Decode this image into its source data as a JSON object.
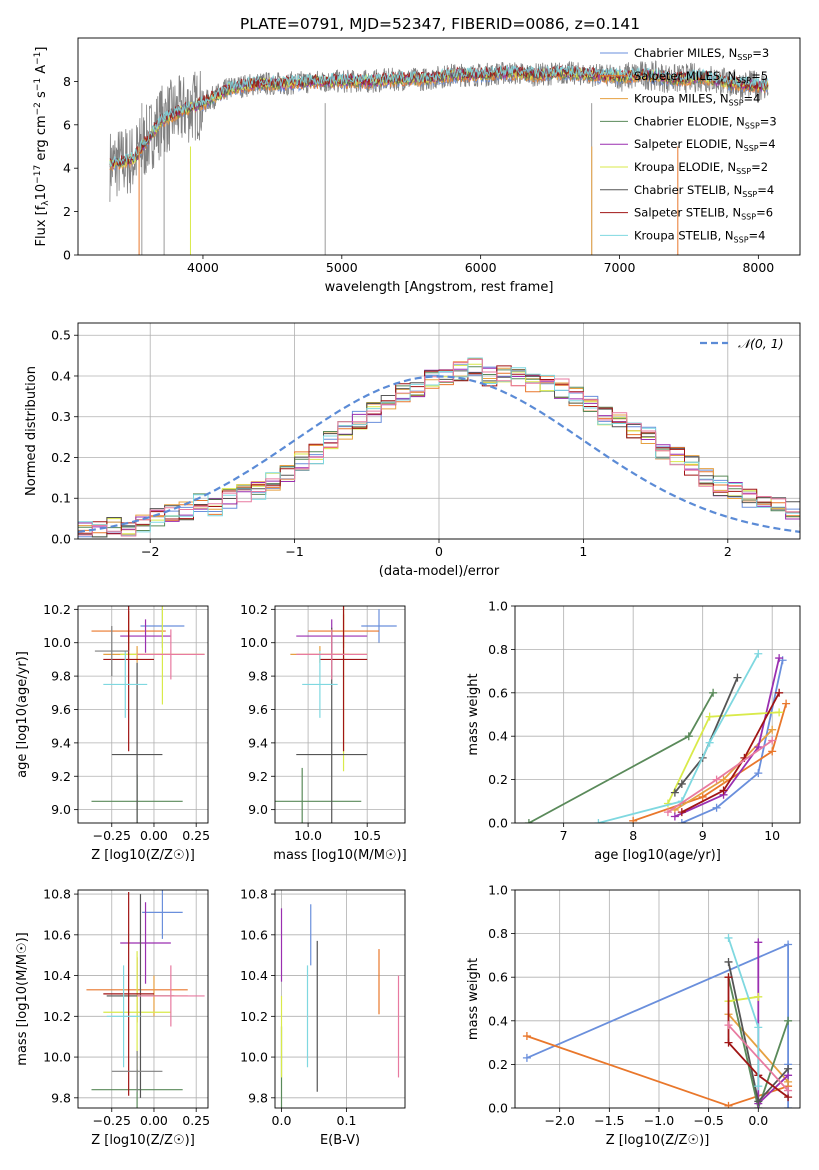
{
  "figure": {
    "title": "PLATE=0791, MJD=52347, FIBERID=0086, z=0.141",
    "colors": {
      "Chabrier MILES": "#6a8fdc",
      "Salpeter MILES": "#e9772b",
      "Kroupa MILES": "#e6a040",
      "Chabrier ELODIE": "#5a8a5a",
      "Salpeter ELODIE": "#9a2fb0",
      "Kroupa ELODIE": "#d9ea4a",
      "Chabrier STELIB": "#555555",
      "Salpeter STELIB": "#a01515",
      "Kroupa STELIB": "#7fd8e0",
      "pink": "#e87aa0",
      "grey": "#808080"
    }
  },
  "chart_data": [
    {
      "id": "spectrum",
      "type": "line",
      "xlabel": "wavelength [Angstrom, rest frame]",
      "ylabel": "Flux [f",
      "ylabel_parts": [
        "Flux [f",
        "λ",
        "10",
        "−17",
        " erg cm",
        "−2",
        " s",
        "−1",
        " A",
        "−1",
        "]"
      ],
      "xlim": [
        3100,
        8300
      ],
      "ylim": [
        0,
        10
      ],
      "xticks": [
        4000,
        5000,
        6000,
        7000,
        8000
      ],
      "yticks": [
        0,
        2,
        4,
        6,
        8
      ],
      "legend": [
        {
          "name": "Chabrier MILES",
          "n": "3"
        },
        {
          "name": "Salpeter MILES",
          "n": "5"
        },
        {
          "name": "Kroupa MILES",
          "n": "4"
        },
        {
          "name": "Chabrier ELODIE",
          "n": "3"
        },
        {
          "name": "Salpeter ELODIE",
          "n": "4"
        },
        {
          "name": "Kroupa ELODIE",
          "n": "2"
        },
        {
          "name": "Chabrier STELIB",
          "n": "4"
        },
        {
          "name": "Salpeter STELIB",
          "n": "6"
        },
        {
          "name": "Kroupa STELIB",
          "n": "4"
        }
      ],
      "legend_sub": "SSP",
      "legend_loc": "right",
      "continuum": {
        "x": [
          3300,
          3500,
          3700,
          3900,
          4000,
          4200,
          4400,
          4600,
          4800,
          5000,
          5200,
          5400,
          5600,
          5800,
          6000,
          6200,
          6400,
          6600,
          6800,
          7000,
          7200,
          7400,
          7600,
          7800,
          8000
        ],
        "y": [
          4.1,
          4.4,
          6.2,
          6.8,
          7.0,
          7.7,
          7.9,
          7.9,
          8.0,
          8.0,
          8.0,
          8.1,
          8.1,
          8.3,
          8.3,
          8.4,
          8.3,
          8.4,
          8.3,
          8.2,
          8.3,
          8.1,
          8.2,
          7.9,
          7.8
        ]
      }
    },
    {
      "id": "residuals",
      "type": "histogram",
      "xlabel": "(data-model)/error",
      "ylabel": "Normed distribution",
      "xlim": [
        -2.5,
        2.5
      ],
      "ylim": [
        0,
        0.53
      ],
      "xticks": [
        -2,
        -1,
        0,
        1,
        2
      ],
      "yticks": [
        0.0,
        0.1,
        0.2,
        0.3,
        0.4,
        0.5
      ],
      "legend": "𝒩(0, 1)",
      "legend_loc": "upper right",
      "bin_width": 0.1,
      "bin_start": -2.5,
      "series": [
        {
          "name": "Chabrier MILES",
          "values": [
            0.02,
            0.02,
            0.03,
            0.03,
            0.04,
            0.05,
            0.06,
            0.07,
            0.09,
            0.08,
            0.1,
            0.11,
            0.12,
            0.14,
            0.16,
            0.19,
            0.21,
            0.24,
            0.27,
            0.29,
            0.31,
            0.33,
            0.36,
            0.37,
            0.39,
            0.4,
            0.41,
            0.42,
            0.4,
            0.41,
            0.4,
            0.38,
            0.38,
            0.37,
            0.35,
            0.33,
            0.3,
            0.29,
            0.27,
            0.25,
            0.22,
            0.2,
            0.18,
            0.15,
            0.13,
            0.12,
            0.1,
            0.09,
            0.08,
            0.07,
            0.05
          ]
        }
      ]
    },
    {
      "id": "age-vs-Z",
      "type": "errorbar",
      "xlabel": "Z [log10(Z/Z☉)]",
      "ylabel": "age [log10(age/yr)]",
      "xlim": [
        -0.45,
        0.32
      ],
      "ylim": [
        8.92,
        10.22
      ],
      "xticks": [
        -0.25,
        0.0,
        0.25
      ],
      "yticks": [
        9.0,
        9.2,
        9.4,
        9.6,
        9.8,
        10.0,
        10.2
      ]
    },
    {
      "id": "age-vs-mass",
      "type": "errorbar",
      "xlabel": "mass [log10(M/M☉)]",
      "ylabel": "",
      "xlim": [
        9.72,
        10.82
      ],
      "ylim": [
        8.92,
        10.22
      ],
      "xticks": [
        10.0,
        10.5
      ],
      "yticks": [
        9.0,
        9.2,
        9.4,
        9.6,
        9.8,
        10.0,
        10.2
      ]
    },
    {
      "id": "massweight-vs-age",
      "type": "line",
      "xlabel": "age [log10(age/yr)]",
      "ylabel": "mass weight",
      "xlim": [
        6.3,
        10.4
      ],
      "ylim": [
        0,
        1.0
      ],
      "xticks": [
        7,
        8,
        9,
        10
      ],
      "yticks": [
        0.0,
        0.2,
        0.4,
        0.6,
        0.8,
        1.0
      ],
      "series": [
        {
          "name": "Chabrier MILES",
          "x": [
            8.7,
            9.2,
            9.8,
            10.15
          ],
          "y": [
            0.0,
            0.07,
            0.23,
            0.75
          ]
        },
        {
          "name": "Salpeter MILES",
          "x": [
            8.0,
            9.0,
            10.0,
            10.2
          ],
          "y": [
            0.01,
            0.12,
            0.33,
            0.55
          ]
        },
        {
          "name": "Kroupa MILES",
          "x": [
            8.6,
            9.3,
            10.0
          ],
          "y": [
            0.06,
            0.2,
            0.43
          ]
        },
        {
          "name": "Chabrier ELODIE",
          "x": [
            6.5,
            8.8,
            9.15
          ],
          "y": [
            0.0,
            0.4,
            0.6
          ]
        },
        {
          "name": "Salpeter ELODIE",
          "x": [
            8.6,
            9.3,
            9.8,
            10.1
          ],
          "y": [
            0.03,
            0.13,
            0.35,
            0.76
          ]
        },
        {
          "name": "Kroupa ELODIE",
          "x": [
            8.5,
            9.1,
            10.1
          ],
          "y": [
            0.09,
            0.49,
            0.51
          ]
        },
        {
          "name": "Chabrier STELIB",
          "x": [
            8.6,
            8.7,
            9.0,
            9.5
          ],
          "y": [
            0.14,
            0.18,
            0.3,
            0.67
          ]
        },
        {
          "name": "Salpeter STELIB",
          "x": [
            8.7,
            9.3,
            9.6,
            10.1
          ],
          "y": [
            0.05,
            0.15,
            0.3,
            0.6
          ]
        },
        {
          "name": "Kroupa STELIB",
          "x": [
            7.5,
            8.7,
            9.1,
            9.8
          ],
          "y": [
            0.0,
            0.1,
            0.37,
            0.78
          ]
        },
        {
          "name": "pink",
          "x": [
            8.5,
            9.2,
            10.0
          ],
          "y": [
            0.05,
            0.2,
            0.38
          ]
        }
      ]
    },
    {
      "id": "mass-vs-Z",
      "type": "errorbar",
      "xlabel": "Z [log10(Z/Z☉)]",
      "ylabel": "mass [log10(M/M☉)]",
      "xlim": [
        -0.45,
        0.32
      ],
      "ylim": [
        9.75,
        10.82
      ],
      "xticks": [
        -0.25,
        0.0,
        0.25
      ],
      "yticks": [
        9.8,
        10.0,
        10.2,
        10.4,
        10.6,
        10.8
      ]
    },
    {
      "id": "mass-vs-EBV",
      "type": "errorbar",
      "xlabel": "E(B-V)",
      "ylabel": "",
      "xlim": [
        -0.01,
        0.19
      ],
      "ylim": [
        9.75,
        10.82
      ],
      "xticks": [
        0.0,
        0.1
      ],
      "yticks": [
        9.8,
        10.0,
        10.2,
        10.4,
        10.6,
        10.8
      ]
    },
    {
      "id": "massweight-vs-Z",
      "type": "line",
      "xlabel": "Z [log10(Z/Z☉)]",
      "ylabel": "mass weight",
      "xlim": [
        -2.45,
        0.42
      ],
      "ylim": [
        0,
        1.0
      ],
      "xticks": [
        -2.0,
        -1.5,
        -1.0,
        -0.5,
        0.0
      ],
      "yticks": [
        0.0,
        0.2,
        0.4,
        0.6,
        0.8,
        1.0
      ],
      "series": [
        {
          "name": "Chabrier MILES",
          "x": [
            -2.33,
            0.3,
            0.3,
            0.3
          ],
          "y": [
            0.23,
            0.75,
            0.2,
            0.0
          ]
        },
        {
          "name": "Salpeter MILES",
          "x": [
            -2.33,
            -0.3,
            0.3
          ],
          "y": [
            0.33,
            0.01,
            0.1
          ]
        },
        {
          "name": "Kroupa MILES",
          "x": [
            -0.3,
            0.3
          ],
          "y": [
            0.43,
            0.12
          ]
        },
        {
          "name": "Chabrier ELODIE",
          "x": [
            -0.3,
            0.0,
            0.3
          ],
          "y": [
            0.6,
            0.0,
            0.4
          ]
        },
        {
          "name": "Salpeter ELODIE",
          "x": [
            0.0,
            0.0,
            0.3
          ],
          "y": [
            0.76,
            0.02,
            0.15
          ]
        },
        {
          "name": "Kroupa ELODIE",
          "x": [
            -0.3,
            0.0
          ],
          "y": [
            0.49,
            0.51
          ]
        },
        {
          "name": "Chabrier STELIB",
          "x": [
            -0.3,
            0.0,
            0.3
          ],
          "y": [
            0.67,
            0.03,
            0.18
          ]
        },
        {
          "name": "Salpeter STELIB",
          "x": [
            -0.3,
            -0.3,
            0.0,
            0.3
          ],
          "y": [
            0.6,
            0.3,
            0.15,
            0.05
          ]
        },
        {
          "name": "Kroupa STELIB",
          "x": [
            -0.3,
            0.0,
            0.0
          ],
          "y": [
            0.78,
            0.37,
            0.1
          ]
        },
        {
          "name": "pink",
          "x": [
            -0.3,
            0.3
          ],
          "y": [
            0.38,
            0.08
          ]
        }
      ]
    }
  ]
}
